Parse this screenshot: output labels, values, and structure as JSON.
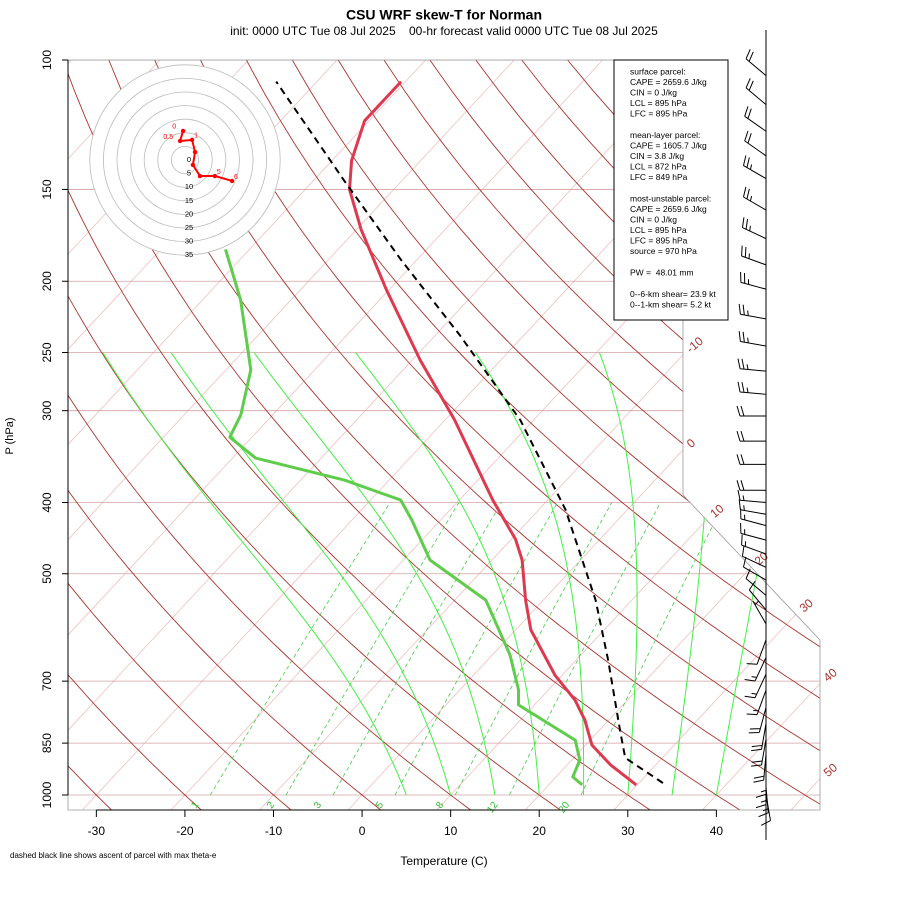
{
  "chart_data": {
    "type": "skew-t",
    "title": "CSU WRF skew-T for Norman",
    "subtitle": "init: 0000 UTC Tue 08 Jul 2025    00-hr forecast valid 0000 UTC Tue 08 Jul 2025",
    "x_label": "Temperature (C)",
    "y_label": "P (hPa)",
    "footnote": "dashed black line shows ascent of parcel with max theta-e",
    "xlim": [
      -33.2,
      51.7
    ],
    "xticks": [
      -30,
      -20,
      -10,
      0,
      10,
      20,
      30,
      40
    ],
    "ylim": [
      1000,
      100
    ],
    "yticks": [
      100,
      150,
      200,
      250,
      300,
      400,
      500,
      700,
      850,
      1000
    ],
    "log_scale": true,
    "isotherm_labels": [
      -10,
      0,
      10,
      20,
      30,
      40,
      50
    ],
    "mixing_ratios": [
      1,
      2,
      3,
      5,
      8,
      12,
      20
    ],
    "series": [
      {
        "color": "#dd3a50",
        "dashed": false,
        "p": [
          969,
          910,
          855,
          791,
          743,
          687,
          596,
          543,
          479,
          449,
          397,
          309,
          256,
          205,
          170,
          150,
          137,
          121,
          107
        ],
        "values": [
          29.9,
          24.9,
          20.7,
          17.3,
          14.1,
          9.2,
          1.7,
          -2.0,
          -6.6,
          -9.5,
          -16.2,
          -28.9,
          -39.1,
          -50.4,
          -59.5,
          -65,
          -67.8,
          -70.5,
          -70.5
        ]
      },
      {
        "color": "#5fcc4c",
        "dashed": false,
        "p": [
          969,
          945,
          896,
          842,
          754,
          719,
          645,
          543,
          479,
          423,
          397,
          373,
          348,
          326,
          304,
          264,
          212,
          181
        ],
        "values": [
          23.8,
          21.9,
          20.9,
          18.3,
          8.2,
          6.6,
          2,
          -6.5,
          -17,
          -23.2,
          -26.6,
          -35,
          -47.4,
          -52.5,
          -53.6,
          -57.2,
          -65.7,
          -72.7
        ]
      },
      {
        "color": "#000000",
        "dashed": true,
        "p": [
          963,
          890,
          816,
          655,
          543,
          409,
          309,
          237,
          187,
          146,
          107
        ],
        "values": [
          32.7,
          25.8,
          22.3,
          13.6,
          5.9,
          -7,
          -21.5,
          -37.2,
          -51.8,
          -66.5,
          -84.6
        ]
      }
    ],
    "hodograph": {
      "rings": [
        0,
        5,
        10,
        15,
        20,
        25,
        30,
        35
      ],
      "color": "#ff0000",
      "u": [
        -0.7,
        -1.8,
        2.6,
        3.7,
        2.9,
        5.5,
        11.0,
        17.3
      ],
      "v": [
        10.7,
        7.0,
        7.4,
        2.9,
        -1.8,
        -5.9,
        -5.9,
        -7.7
      ],
      "labels": [
        "0",
        "0.5",
        "1",
        null,
        null,
        null,
        "5",
        "6"
      ]
    },
    "barbs": {
      "p": [
        105,
        115,
        125,
        135,
        145,
        160,
        175,
        190,
        205,
        225,
        245,
        265,
        285,
        305,
        330,
        355,
        385,
        400,
        415,
        430,
        450,
        470,
        490,
        510,
        535,
        560,
        585,
        615,
        650,
        685,
        720,
        760,
        800,
        840,
        880,
        920,
        950,
        975,
        1000
      ],
      "direction": [
        310,
        310,
        305,
        305,
        300,
        300,
        295,
        290,
        285,
        280,
        280,
        275,
        275,
        270,
        270,
        270,
        270,
        275,
        280,
        285,
        285,
        290,
        295,
        300,
        310,
        320,
        330,
        200,
        205,
        205,
        200,
        195,
        190,
        190,
        185,
        180,
        180,
        175,
        170
      ],
      "speed": [
        20,
        20,
        20,
        20,
        25,
        25,
        25,
        25,
        25,
        25,
        25,
        25,
        25,
        20,
        20,
        20,
        20,
        15,
        15,
        15,
        15,
        15,
        10,
        10,
        10,
        10,
        5,
        10,
        15,
        15,
        15,
        20,
        20,
        20,
        20,
        15,
        15,
        15,
        10
      ]
    },
    "info_box": [
      [
        "surface parcel:",
        "CAPE = 2659.6 J/kg",
        "CIN = 0 J/kg",
        "LCL = 895 hPa",
        "LFC = 895 hPa"
      ],
      [
        "mean-layer parcel:",
        "CAPE = 1605.7 J/kg",
        "CIN = 3.8 J/kg",
        "LCL = 872 hPa",
        "LFC = 849 hPa"
      ],
      [
        "most-unstable parcel:",
        "CAPE = 2659.6 J/kg",
        "CIN = 0 J/kg",
        "LCL = 895 hPa",
        "LFC = 895 hPa",
        "source = 970 hPa"
      ],
      [
        "PW =  48.01 mm"
      ],
      [
        "0--6-km shear= 23.9 kt",
        "0--1-km shear= 5.2 kt"
      ]
    ]
  }
}
